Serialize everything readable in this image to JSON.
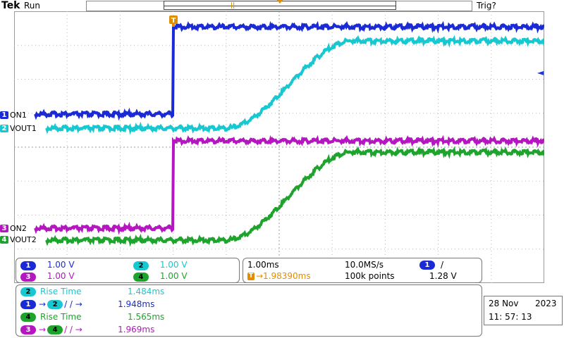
{
  "header": {
    "brand": "Tek",
    "run_state": "Run",
    "trigger_state": "Trig?",
    "record_marker": "||",
    "trigger_marker": "T"
  },
  "colors": {
    "ch1": "#1a2bd6",
    "ch2": "#18c8d0",
    "ch3": "#b416c0",
    "ch4": "#1ea42c",
    "trigger": "#e08e00"
  },
  "channels": [
    {
      "num": "1",
      "label": "ON1",
      "color": "#1a2bd6"
    },
    {
      "num": "2",
      "label": "VOUT1",
      "color": "#18c8d0"
    },
    {
      "num": "3",
      "label": "ON2",
      "color": "#b416c0"
    },
    {
      "num": "4",
      "label": "VOUT2",
      "color": "#1ea42c"
    }
  ],
  "scales": [
    {
      "num": "1",
      "value": "1.00 V"
    },
    {
      "num": "2",
      "value": "1.00 V"
    },
    {
      "num": "3",
      "value": "1.00 V"
    },
    {
      "num": "4",
      "value": "1.00 V"
    }
  ],
  "timebase": {
    "horizontal_scale": "1.00ms",
    "sample_rate": "10.0MS/s",
    "record_length": "100k points",
    "trigger_delay": "→1.98390ms",
    "trigger_source": "1",
    "trigger_slope": "/",
    "trigger_level": "1.28 V"
  },
  "measurements": [
    {
      "src": "2",
      "dst": "",
      "name": "Rise Time",
      "value": "1.484ms"
    },
    {
      "src": "1",
      "dst": "2",
      "name": "→  /→",
      "value": "1.948ms"
    },
    {
      "src": "4",
      "dst": "",
      "name": "Rise Time",
      "value": "1.565ms"
    },
    {
      "src": "3",
      "dst": "4",
      "name": "→  /→",
      "value": "1.969ms"
    }
  ],
  "datetime": {
    "date_day": "28 Nov",
    "date_year": "2023",
    "time": "11: 57: 13"
  }
}
